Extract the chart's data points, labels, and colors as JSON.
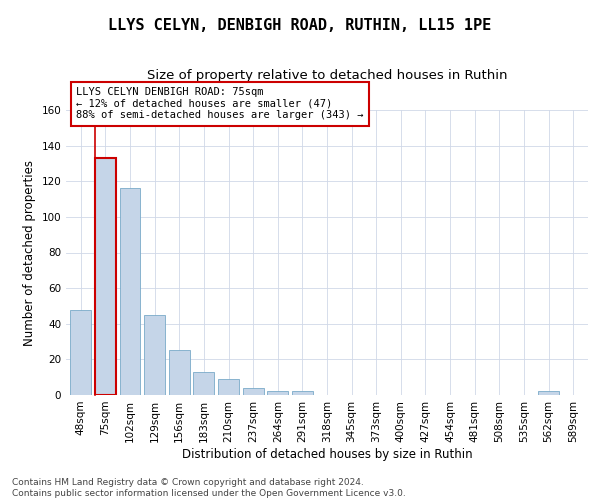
{
  "title1": "LLYS CELYN, DENBIGH ROAD, RUTHIN, LL15 1PE",
  "title2": "Size of property relative to detached houses in Ruthin",
  "xlabel": "Distribution of detached houses by size in Ruthin",
  "ylabel": "Number of detached properties",
  "categories": [
    "48sqm",
    "75sqm",
    "102sqm",
    "129sqm",
    "156sqm",
    "183sqm",
    "210sqm",
    "237sqm",
    "264sqm",
    "291sqm",
    "318sqm",
    "345sqm",
    "373sqm",
    "400sqm",
    "427sqm",
    "454sqm",
    "481sqm",
    "508sqm",
    "535sqm",
    "562sqm",
    "589sqm"
  ],
  "values": [
    48,
    133,
    116,
    45,
    25,
    13,
    9,
    4,
    2,
    2,
    0,
    0,
    0,
    0,
    0,
    0,
    0,
    0,
    0,
    2,
    0
  ],
  "bar_color": "#c5d5e8",
  "bar_edge_color": "#7aaac8",
  "highlight_index": 1,
  "highlight_edge_color": "#cc0000",
  "ylim": [
    0,
    160
  ],
  "yticks": [
    0,
    20,
    40,
    60,
    80,
    100,
    120,
    140,
    160
  ],
  "annotation_text": "LLYS CELYN DENBIGH ROAD: 75sqm\n← 12% of detached houses are smaller (47)\n88% of semi-detached houses are larger (343) →",
  "annotation_box_color": "#ffffff",
  "annotation_box_edge": "#cc0000",
  "footer": "Contains HM Land Registry data © Crown copyright and database right 2024.\nContains public sector information licensed under the Open Government Licence v3.0.",
  "title1_fontsize": 11,
  "title2_fontsize": 9.5,
  "xlabel_fontsize": 8.5,
  "ylabel_fontsize": 8.5,
  "tick_fontsize": 7.5,
  "annotation_fontsize": 7.5,
  "footer_fontsize": 6.5
}
